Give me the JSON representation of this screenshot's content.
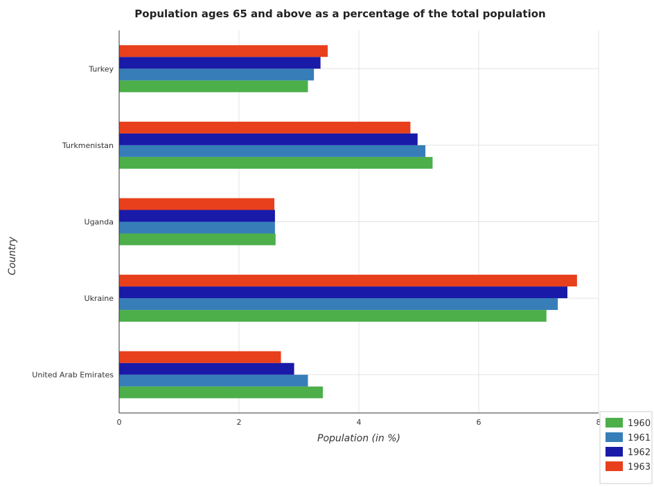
{
  "chart_data": {
    "type": "bar",
    "orientation": "horizontal",
    "title": "Population ages 65 and above as a percentage of the total population",
    "xlabel": "Population (in %)",
    "ylabel": "Country",
    "categories": [
      "Turkey",
      "Turkmenistan",
      "Uganda",
      "Ukraine",
      "United Arab Emirates"
    ],
    "series": [
      {
        "name": "1960",
        "color": "#4daf4a",
        "values": [
          3.15,
          5.23,
          2.61,
          7.13,
          3.4
        ]
      },
      {
        "name": "1961",
        "color": "#377eb8",
        "values": [
          3.25,
          5.11,
          2.6,
          7.32,
          3.15
        ]
      },
      {
        "name": "1962",
        "color": "#1a1aa8",
        "values": [
          3.36,
          4.98,
          2.6,
          7.48,
          2.92
        ]
      },
      {
        "name": "1963",
        "color": "#e8401c",
        "values": [
          3.48,
          4.86,
          2.59,
          7.64,
          2.7
        ]
      }
    ],
    "xticks": [
      "0",
      "2",
      "4",
      "6",
      "8"
    ],
    "xlim": [
      0,
      8
    ],
    "grid": true,
    "legend_position": "bottom-right"
  }
}
